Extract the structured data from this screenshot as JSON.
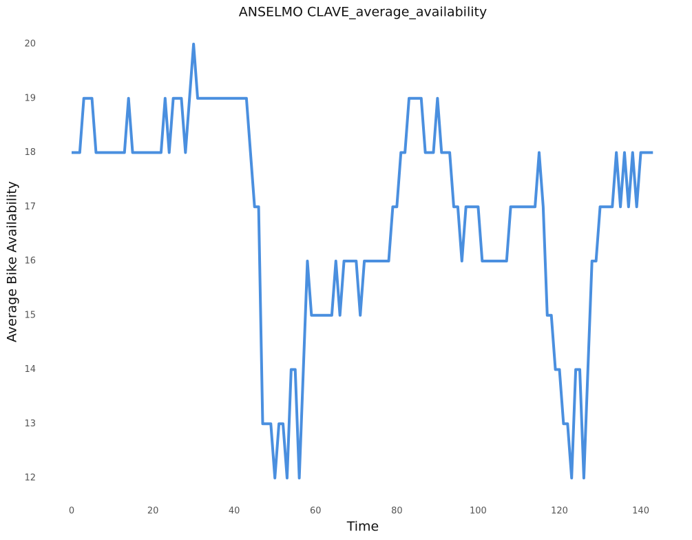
{
  "chart_data": {
    "type": "line",
    "title": "ANSELMO CLAVE_average_availability",
    "x_label": "Time",
    "y_label": "Average Bike Availability",
    "x": [
      0,
      1,
      2,
      3,
      4,
      5,
      6,
      7,
      8,
      9,
      10,
      11,
      12,
      13,
      14,
      15,
      16,
      17,
      18,
      19,
      20,
      21,
      22,
      23,
      24,
      25,
      26,
      27,
      28,
      29,
      30,
      31,
      32,
      33,
      34,
      35,
      36,
      37,
      38,
      39,
      40,
      41,
      42,
      43,
      44,
      45,
      46,
      47,
      48,
      49,
      50,
      51,
      52,
      53,
      54,
      55,
      56,
      57,
      58,
      59,
      60,
      61,
      62,
      63,
      64,
      65,
      66,
      67,
      68,
      69,
      70,
      71,
      72,
      73,
      74,
      75,
      76,
      77,
      78,
      79,
      80,
      81,
      82,
      83,
      84,
      85,
      86,
      87,
      88,
      89,
      90,
      91,
      92,
      93,
      94,
      95,
      96,
      97,
      98,
      99,
      100,
      101,
      102,
      103,
      104,
      105,
      106,
      107,
      108,
      109,
      110,
      111,
      112,
      113,
      114,
      115,
      116,
      117,
      118,
      119,
      120,
      121,
      122,
      123,
      124,
      125,
      126,
      127,
      128,
      129,
      130,
      131,
      132,
      133,
      134,
      135,
      136,
      137,
      138,
      139,
      140,
      141,
      142,
      143
    ],
    "series": [
      {
        "name": "ANSELMO CLAVE",
        "color": "#4a8fdf",
        "values": [
          18,
          18,
          18,
          19,
          19,
          19,
          18,
          18,
          18,
          18,
          18,
          18,
          18,
          18,
          19,
          18,
          18,
          18,
          18,
          18,
          18,
          18,
          18,
          19,
          18,
          19,
          19,
          19,
          18,
          19,
          20,
          19,
          19,
          19,
          19,
          19,
          19,
          19,
          19,
          19,
          19,
          19,
          19,
          19,
          18,
          17,
          17,
          13,
          13,
          13,
          12,
          13,
          13,
          12,
          14,
          14,
          12,
          14,
          16,
          15,
          15,
          15,
          15,
          15,
          15,
          16,
          15,
          16,
          16,
          16,
          16,
          15,
          16,
          16,
          16,
          16,
          16,
          16,
          16,
          17,
          17,
          18,
          18,
          19,
          19,
          19,
          19,
          18,
          18,
          18,
          19,
          18,
          18,
          18,
          17,
          17,
          16,
          17,
          17,
          17,
          17,
          16,
          16,
          16,
          16,
          16,
          16,
          16,
          17,
          17,
          17,
          17,
          17,
          17,
          17,
          18,
          17,
          15,
          15,
          14,
          14,
          13,
          13,
          12,
          14,
          14,
          12,
          14,
          16,
          16,
          17,
          17,
          17,
          17,
          18,
          17,
          18,
          17,
          18,
          17,
          18,
          18,
          18,
          18
        ]
      }
    ],
    "xlim": [
      -4,
      146
    ],
    "xticks": [
      0,
      20,
      40,
      60,
      80,
      100,
      120,
      140
    ],
    "ylim": [
      11.6,
      20.4
    ],
    "yticks": [
      12,
      13,
      14,
      15,
      16,
      17,
      18,
      19,
      20
    ],
    "grid": false
  }
}
